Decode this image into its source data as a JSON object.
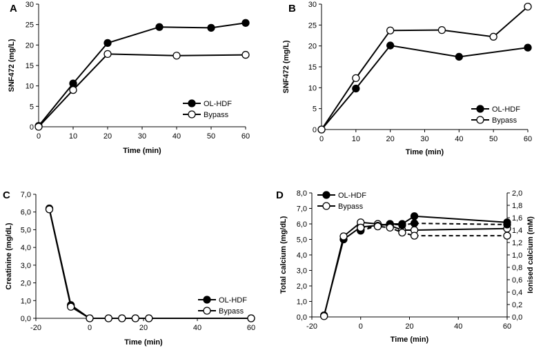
{
  "chart_data": [
    {
      "panel": "A",
      "type": "line",
      "xlabel": "Time (min)",
      "ylabel": "SNF472 (mg/L)",
      "xlim": [
        0,
        60
      ],
      "ylim": [
        0,
        30
      ],
      "xticks": [
        0,
        10,
        20,
        30,
        40,
        50,
        60
      ],
      "yticks": [
        "0",
        "5",
        "10",
        "15",
        "20",
        "25",
        "30"
      ],
      "legend_placement": "bottom-right",
      "series": [
        {
          "name": "OL-HDF",
          "marker": "filled",
          "x": [
            0,
            10,
            20,
            35,
            50,
            60
          ],
          "y": [
            0.2,
            10.6,
            20.5,
            24.4,
            24.2,
            25.4
          ]
        },
        {
          "name": "Bypass",
          "marker": "open",
          "x": [
            0,
            10,
            20,
            40,
            60
          ],
          "y": [
            0,
            9.0,
            17.8,
            17.4,
            17.6
          ]
        }
      ]
    },
    {
      "panel": "B",
      "type": "line",
      "xlabel": "Time (min)",
      "ylabel": "SNF472 (mg/L)",
      "xlim": [
        0,
        60
      ],
      "ylim": [
        0,
        30
      ],
      "xticks": [
        0,
        10,
        20,
        30,
        40,
        50,
        60
      ],
      "yticks": [
        "0",
        "5",
        "10",
        "15",
        "20",
        "25",
        "30"
      ],
      "legend_placement": "bottom-right",
      "series": [
        {
          "name": "OL-HDF",
          "marker": "filled",
          "x": [
            0,
            10,
            20,
            40,
            60
          ],
          "y": [
            0,
            9.8,
            20.1,
            17.4,
            19.6
          ]
        },
        {
          "name": "Bypass",
          "marker": "open",
          "x": [
            0,
            10,
            20,
            35,
            50,
            60
          ],
          "y": [
            0,
            12.3,
            23.7,
            23.8,
            22.2,
            29.4
          ]
        }
      ]
    },
    {
      "panel": "C",
      "type": "line",
      "xlabel": "Time (min)",
      "ylabel": "Creatinine (mg/dL)",
      "xlim": [
        -20,
        60
      ],
      "ylim": [
        0,
        7
      ],
      "xticks": [
        -20,
        0,
        20,
        40,
        60
      ],
      "yticks": [
        "0,0",
        "1,0",
        "2,0",
        "3,0",
        "4,0",
        "5,0",
        "6,0",
        "7,0"
      ],
      "legend_placement": "bottom-right",
      "series": [
        {
          "name": "OL-HDF",
          "marker": "filled",
          "x": [
            -15,
            -7,
            0,
            7,
            12,
            17,
            22,
            60
          ],
          "y": [
            6.2,
            0.75,
            0,
            0,
            0,
            0,
            0,
            0
          ]
        },
        {
          "name": "Bypass",
          "marker": "open",
          "x": [
            -15,
            -7,
            0,
            7,
            12,
            17,
            22,
            60
          ],
          "y": [
            6.15,
            0.65,
            0,
            0,
            0,
            0,
            0,
            0
          ]
        }
      ]
    },
    {
      "panel": "D",
      "type": "line",
      "xlabel": "Time (min)",
      "ylabel": "Total calcium (mg/dL)",
      "y2label": "Ionised calcium (mM)",
      "xlim": [
        -20,
        60
      ],
      "ylim": [
        0,
        8
      ],
      "y2lim": [
        0,
        2
      ],
      "xticks": [
        -20,
        0,
        20,
        40,
        60
      ],
      "yticks": [
        "0,0",
        "1,0",
        "2,0",
        "3,0",
        "4,0",
        "5,0",
        "6,0",
        "7,0",
        "8,0"
      ],
      "y2ticks": [
        "0,0",
        "0,2",
        "0,4",
        "0,6",
        "0,8",
        "1,0",
        "1,2",
        "1,4",
        "1,6",
        "1,8",
        "2,0"
      ],
      "legend_placement": "top-left",
      "series": [
        {
          "name": "OL-HDF",
          "marker": "filled",
          "axis": "left",
          "dash": false,
          "x": [
            -15,
            -7,
            0,
            7,
            12,
            17,
            22,
            60
          ],
          "y": [
            0.1,
            5.0,
            5.8,
            5.9,
            6.0,
            6.0,
            6.5,
            6.1
          ]
        },
        {
          "name": "Bypass",
          "marker": "open",
          "axis": "left",
          "dash": false,
          "x": [
            -15,
            -7,
            0,
            7,
            12,
            17,
            22,
            60
          ],
          "y": [
            0.05,
            5.2,
            6.1,
            6.0,
            5.9,
            5.6,
            5.6,
            5.7
          ]
        },
        {
          "name": "OL-HDF",
          "marker": "filled",
          "axis": "right",
          "dash": true,
          "x": [
            0,
            7,
            12,
            17,
            22,
            60
          ],
          "y": [
            1.39,
            1.47,
            1.5,
            1.48,
            1.51,
            1.49
          ]
        },
        {
          "name": "Bypass",
          "marker": "open",
          "axis": "right",
          "dash": true,
          "x": [
            0,
            7,
            12,
            17,
            22,
            60
          ],
          "y": [
            1.44,
            1.46,
            1.44,
            1.36,
            1.31,
            1.31
          ]
        }
      ]
    }
  ]
}
